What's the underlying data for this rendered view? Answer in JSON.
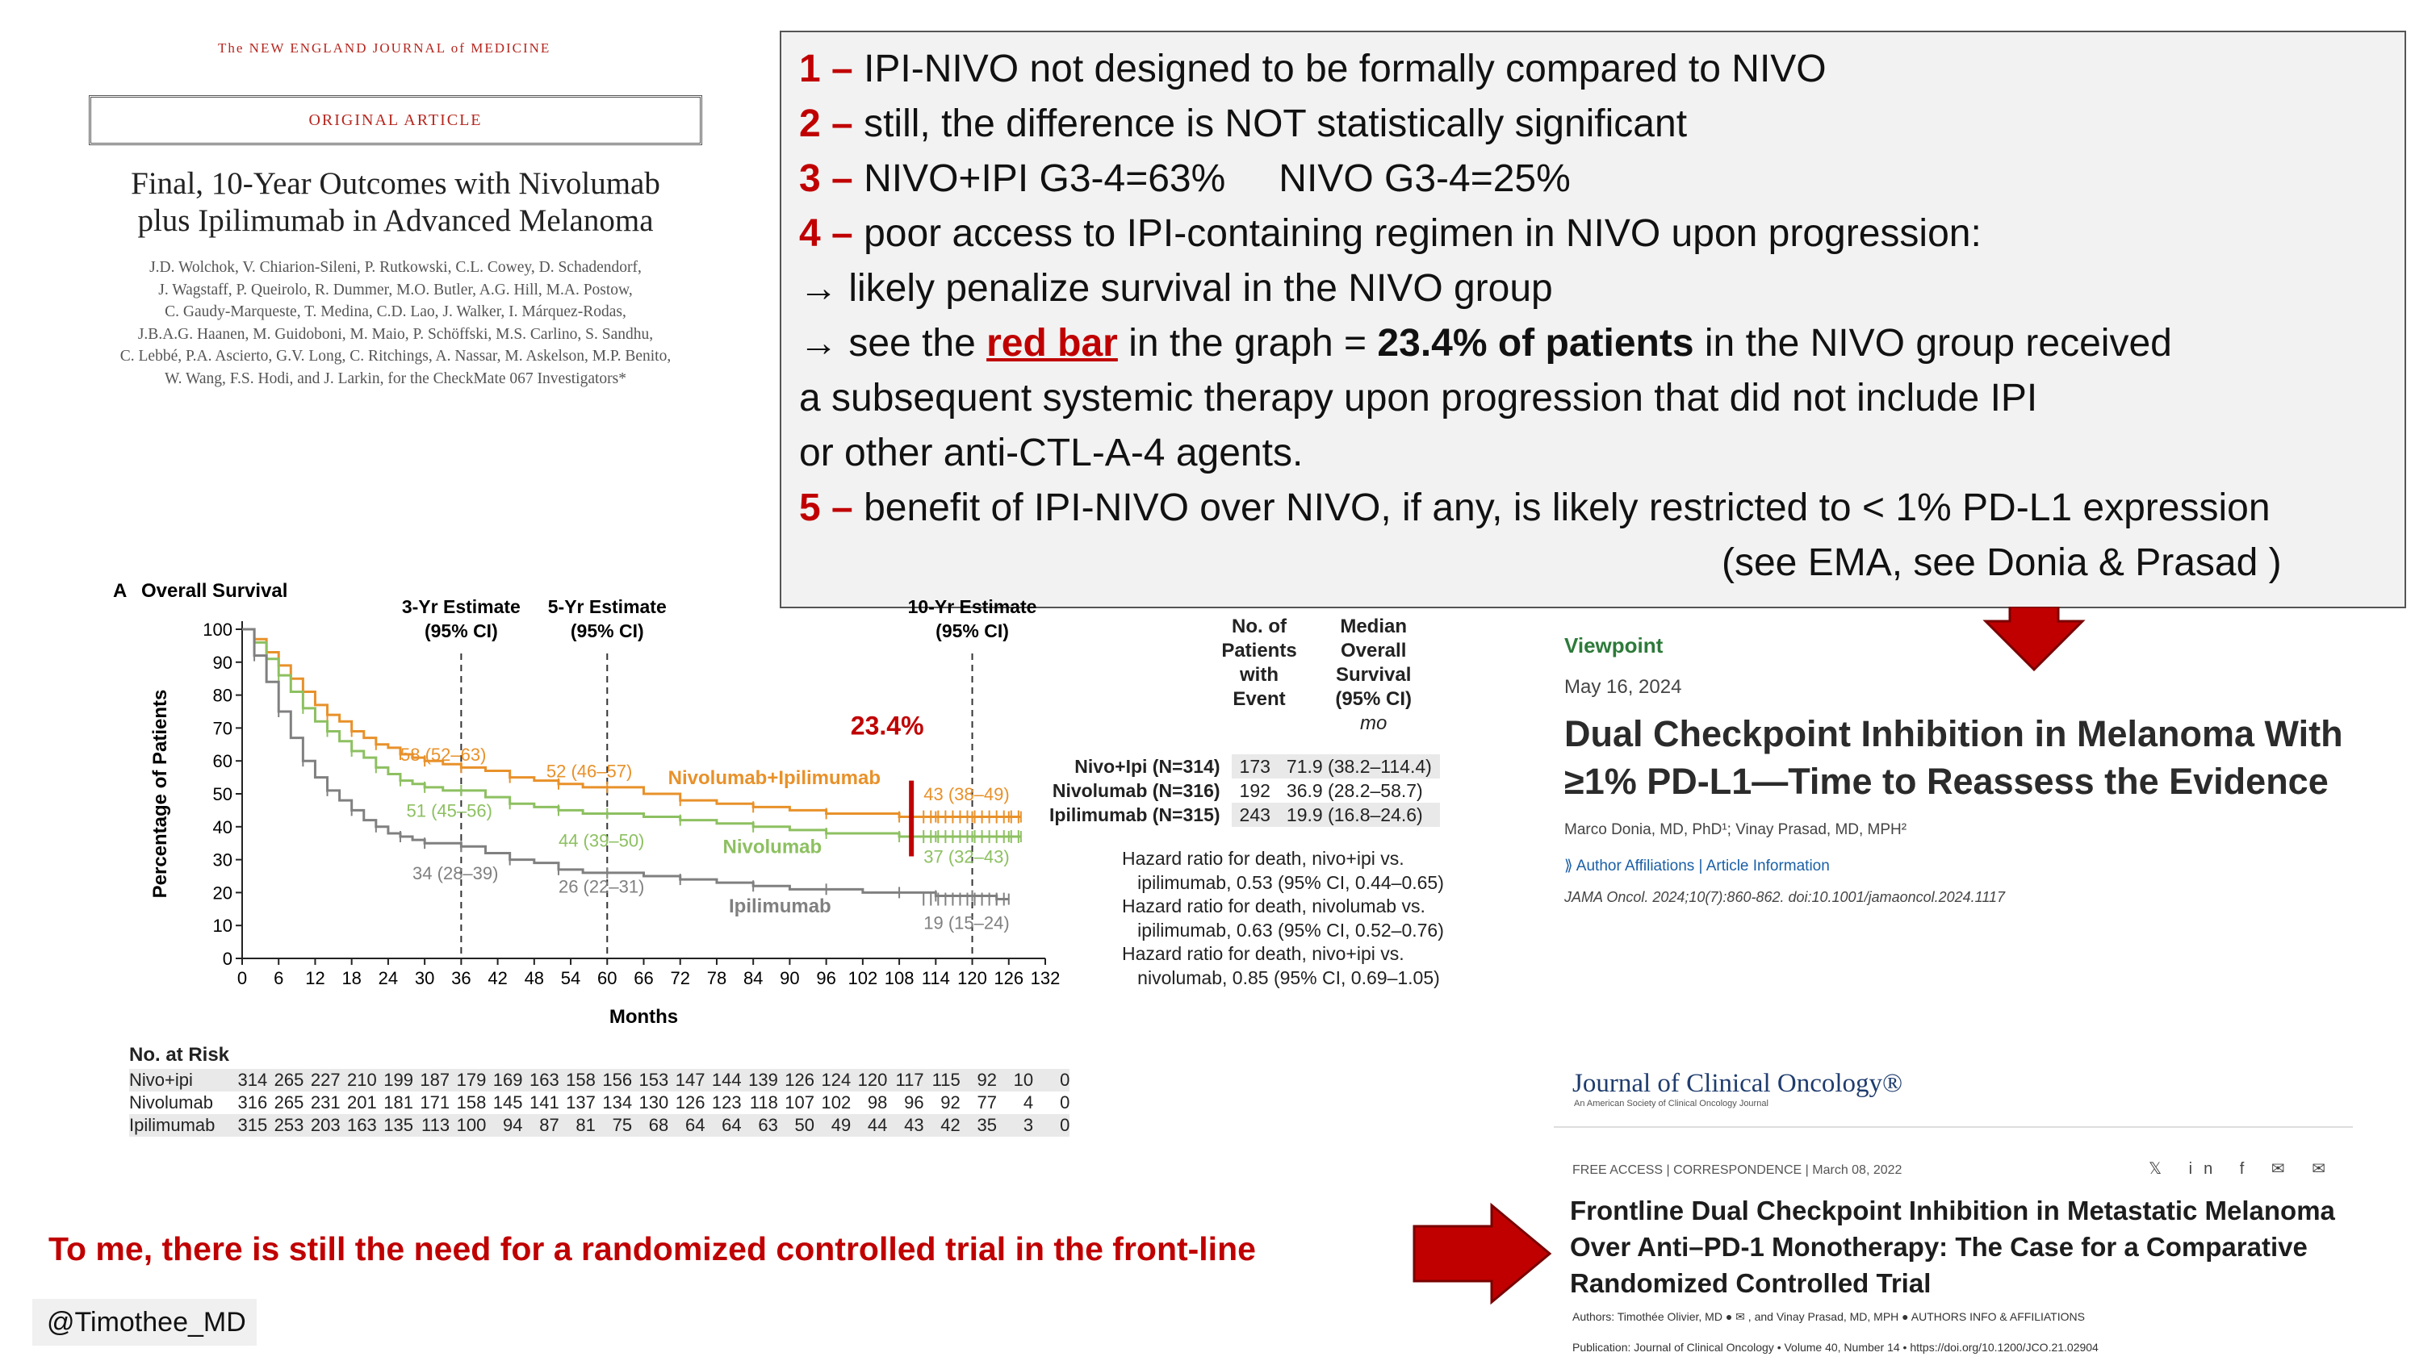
{
  "nejm": {
    "journal": "The NEW ENGLAND JOURNAL of MEDICINE",
    "section": "ORIGINAL ARTICLE",
    "title_line1": "Final, 10-Year Outcomes with Nivolumab",
    "title_line2": "plus Ipilimumab in Advanced Melanoma",
    "authors": [
      "J.D. Wolchok, V. Chiarion-Sileni, P. Rutkowski, C.L. Cowey, D. Schadendorf,",
      "J. Wagstaff, P. Queirolo, R. Dummer, M.O. Butler, A.G. Hill, M.A. Postow,",
      "C. Gaudy-Marqueste, T. Medina, C.D. Lao, J. Walker, I. Márquez-Rodas,",
      "J.B.A.G. Haanen, M. Guidoboni, M. Maio, P. Schöffski, M.S. Carlino, S. Sandhu,",
      "C. Lebbé, P.A. Ascierto, G.V. Long, C. Ritchings, A. Nassar, M. Askelson, M.P. Benito,",
      "W. Wang, F.S. Hodi, and J. Larkin, for the CheckMate 067 Investigators*"
    ]
  },
  "notes": {
    "n1_num": "1 –",
    "n1": "IPI-NIVO not designed to be formally compared to NIVO",
    "n2_num": "2 –",
    "n2": "still, the difference is NOT statistically significant",
    "n3_num": "3 –",
    "n3a": "NIVO+IPI G3-4=63%",
    "n3b": "NIVO G3-4=25%",
    "n4_num": "4 –",
    "n4": "poor access to IPI-containing regimen in NIVO upon progression:",
    "n4a": "→ likely penalize survival in the NIVO group",
    "n4b_pre": "→ see the ",
    "n4b_red": "red bar",
    "n4b_mid": " in the graph = ",
    "n4b_bold": "23.4% of patients",
    "n4b_post": " in the NIVO group received",
    "n4c": "a subsequent systemic therapy upon progression that did not include IPI",
    "n4d": "or other anti-CTL-A-4 agents.",
    "n5_num": "5 –",
    "n5": "benefit of IPI-NIVO over NIVO, if any, is likely restricted to < 1% PD-L1 expression",
    "n5b": "(see EMA, see Donia & Prasad )"
  },
  "chart_data": {
    "type": "line",
    "panel_label": "A",
    "title": "Overall Survival",
    "xlabel": "Months",
    "ylabel": "Percentage of Patients",
    "xlim": [
      0,
      132
    ],
    "ylim": [
      0,
      100
    ],
    "xticks": [
      0,
      6,
      12,
      18,
      24,
      30,
      36,
      42,
      48,
      54,
      60,
      66,
      72,
      78,
      84,
      90,
      96,
      102,
      108,
      114,
      120,
      126,
      132
    ],
    "yticks": [
      0,
      10,
      20,
      30,
      40,
      50,
      60,
      70,
      80,
      90,
      100
    ],
    "estimate_lines": [
      {
        "x": 36,
        "label1": "3-Yr Estimate",
        "label2": "(95% CI)"
      },
      {
        "x": 60,
        "label1": "5-Yr Estimate",
        "label2": "(95% CI)"
      },
      {
        "x": 120,
        "label1": "10-Yr Estimate",
        "label2": "(95% CI)"
      }
    ],
    "series": [
      {
        "name": "Nivolumab+Ipilimumab",
        "color": "#e8912a",
        "x": [
          0,
          2,
          4,
          6,
          8,
          10,
          12,
          14,
          16,
          18,
          20,
          22,
          24,
          26,
          28,
          30,
          33,
          36,
          40,
          44,
          48,
          52,
          56,
          60,
          66,
          72,
          78,
          84,
          90,
          96,
          102,
          108,
          114,
          120,
          126,
          128
        ],
        "y": [
          100,
          97,
          93,
          89,
          85,
          81,
          77,
          74,
          72,
          69,
          67,
          65,
          64,
          62,
          61,
          60,
          59,
          58,
          57,
          55,
          54,
          53,
          52,
          52,
          50,
          48,
          47,
          46,
          45,
          44,
          44,
          43,
          43,
          43,
          43,
          43
        ]
      },
      {
        "name": "Nivolumab",
        "color": "#8dc061",
        "x": [
          0,
          2,
          4,
          6,
          8,
          10,
          12,
          14,
          16,
          18,
          20,
          22,
          24,
          26,
          28,
          30,
          33,
          36,
          40,
          44,
          48,
          52,
          56,
          60,
          66,
          72,
          78,
          84,
          90,
          96,
          102,
          108,
          114,
          120,
          126,
          128
        ],
        "y": [
          100,
          96,
          91,
          86,
          81,
          76,
          72,
          69,
          66,
          63,
          61,
          58,
          56,
          54,
          53,
          52,
          51,
          51,
          49,
          47,
          46,
          45,
          44,
          44,
          43,
          42,
          41,
          40,
          39,
          38,
          38,
          37,
          37,
          37,
          37,
          37
        ]
      },
      {
        "name": "Ipilimumab",
        "color": "#808080",
        "x": [
          0,
          2,
          4,
          6,
          8,
          10,
          12,
          14,
          16,
          18,
          20,
          22,
          24,
          26,
          28,
          30,
          33,
          36,
          40,
          44,
          48,
          52,
          56,
          60,
          66,
          72,
          78,
          84,
          90,
          96,
          102,
          108,
          114,
          120,
          124,
          126
        ],
        "y": [
          100,
          92,
          84,
          75,
          67,
          60,
          55,
          51,
          48,
          45,
          42,
          40,
          38,
          37,
          36,
          35,
          35,
          34,
          32,
          30,
          29,
          27,
          26,
          26,
          25,
          24,
          23,
          22,
          21,
          21,
          20,
          20,
          19,
          19,
          18,
          18
        ]
      }
    ],
    "annotations": [
      {
        "text": "58 (52–63)",
        "x": 26,
        "y": 60,
        "color": "#e8912a"
      },
      {
        "text": "52 (46–57)",
        "x": 50,
        "y": 55,
        "color": "#e8912a"
      },
      {
        "text": "43 (38–49)",
        "x": 112,
        "y": 48,
        "color": "#e8912a"
      },
      {
        "text": "51 (45–56)",
        "x": 27,
        "y": 43,
        "color": "#8dc061"
      },
      {
        "text": "44 (39–50)",
        "x": 52,
        "y": 34,
        "color": "#8dc061"
      },
      {
        "text": "37 (32–43)",
        "x": 112,
        "y": 29,
        "color": "#8dc061"
      },
      {
        "text": "34 (28–39)",
        "x": 28,
        "y": 24,
        "color": "#808080"
      },
      {
        "text": "26 (22–31)",
        "x": 52,
        "y": 20,
        "color": "#808080"
      },
      {
        "text": "19 (15–24)",
        "x": 112,
        "y": 9,
        "color": "#808080"
      }
    ],
    "series_labels": [
      {
        "text": "Nivolumab+Ipilimumab",
        "x": 70,
        "y": 53,
        "color": "#e8912a"
      },
      {
        "text": "Nivolumab",
        "x": 79,
        "y": 32,
        "color": "#8dc061"
      },
      {
        "text": "Ipilimumab",
        "x": 80,
        "y": 14,
        "color": "#808080"
      }
    ],
    "red_bar": {
      "x": 110,
      "y0": 31,
      "y1": 54,
      "color": "#c00000",
      "label": "23.4%",
      "label_x": 100,
      "label_y": 68
    },
    "at_risk": {
      "title": "No. at Risk",
      "rows": [
        {
          "group": "Nivo+ipi",
          "values": [
            314,
            265,
            227,
            210,
            199,
            187,
            179,
            169,
            163,
            158,
            156,
            153,
            147,
            144,
            139,
            126,
            124,
            120,
            117,
            115,
            92,
            10,
            0
          ]
        },
        {
          "group": "Nivolumab",
          "values": [
            316,
            265,
            231,
            201,
            181,
            171,
            158,
            145,
            141,
            137,
            134,
            130,
            126,
            123,
            118,
            107,
            102,
            98,
            96,
            92,
            77,
            4,
            0
          ]
        },
        {
          "group": "Ipilimumab",
          "values": [
            315,
            253,
            203,
            163,
            135,
            113,
            100,
            94,
            87,
            81,
            75,
            68,
            64,
            64,
            63,
            50,
            49,
            44,
            43,
            42,
            35,
            3,
            0
          ]
        }
      ]
    },
    "median_table": {
      "head1": [
        "No. of",
        "Patients",
        "with",
        "Event"
      ],
      "head2": [
        "Median",
        "Overall",
        "Survival",
        "(95% CI)"
      ],
      "unit": "mo",
      "rows": [
        {
          "group": "Nivo+Ipi (N=314)",
          "events": "173",
          "median": "71.9 (38.2–114.4)"
        },
        {
          "group": "Nivolumab (N=316)",
          "events": "192",
          "median": "36.9 (28.2–58.7)"
        },
        {
          "group": "Ipilimumab (N=315)",
          "events": "243",
          "median": "19.9 (16.8–24.6)"
        }
      ],
      "hr_lines": [
        "Hazard ratio for death, nivo+ipi vs.",
        "   ipilimumab, 0.53 (95% CI, 0.44–0.65)",
        "Hazard ratio for death, nivolumab vs.",
        "   ipilimumab, 0.63 (95% CI, 0.52–0.76)",
        "Hazard ratio for death, nivo+ipi vs.",
        "   nivolumab, 0.85 (95% CI, 0.69–1.05)"
      ]
    }
  },
  "viewpoint": {
    "label": "Viewpoint",
    "date": "May 16, 2024",
    "title": "Dual Checkpoint Inhibition in Melanoma With ≥1% PD-L1—Time to Reassess the Evidence",
    "authors": "Marco Donia, MD, PhD¹; Vinay Prasad, MD, MPH²",
    "links": "⟫ Author Affiliations   |   Article Information",
    "cite": "JAMA Oncol. 2024;10(7):860-862. doi:10.1001/jamaoncol.2024.1117"
  },
  "jco": {
    "logo": "Journal of Clinical Oncology®",
    "sub": "An American Society of Clinical Oncology Journal",
    "meta": "FREE ACCESS  |  CORRESPONDENCE  |  March 08, 2022",
    "share": "𝕏 in f ✉ ✉",
    "title": "Frontline Dual Checkpoint Inhibition in Metastatic Melanoma Over Anti–PD-1 Monotherapy: The Case for a Comparative Randomized Controlled Trial",
    "authors": "Authors: Timothée Olivier, MD ● ✉ , and Vinay Prasad, MD, MPH ●     AUTHORS INFO & AFFILIATIONS",
    "pub": "Publication: Journal of Clinical Oncology  •  Volume 40, Number 14  •  https://doi.org/10.1200/JCO.21.02904"
  },
  "conclusion": "To me, there is still the need for a randomized controlled trial in the front-line",
  "handle": "@Timothee_MD",
  "colors": {
    "accent_red": "#c00000",
    "arrow_red": "#c00000"
  }
}
